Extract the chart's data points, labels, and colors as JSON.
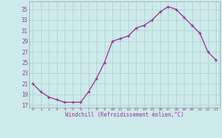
{
  "x": [
    0,
    1,
    2,
    3,
    4,
    5,
    6,
    7,
    8,
    9,
    10,
    11,
    12,
    13,
    14,
    15,
    16,
    17,
    18,
    19,
    20,
    21,
    22,
    23
  ],
  "y": [
    21,
    19.5,
    18.5,
    18,
    17.5,
    17.5,
    17.5,
    19.5,
    22,
    25,
    29,
    29.5,
    30,
    31.5,
    32,
    33,
    34.5,
    35.5,
    35,
    33.5,
    32,
    30.5,
    27,
    25.5
  ],
  "line_color": "#993399",
  "marker_color": "#993399",
  "bg_color": "#cceaea",
  "grid_color": "#aacccc",
  "text_color": "#993399",
  "xlim": [
    -0.5,
    23.5
  ],
  "ylim": [
    16.5,
    36.5
  ],
  "yticks": [
    17,
    19,
    21,
    23,
    25,
    27,
    29,
    31,
    33,
    35
  ],
  "xtick_labels": [
    "0",
    "1",
    "2",
    "3",
    "4",
    "5",
    "6",
    "7",
    "8",
    "9",
    "10",
    "11",
    "12",
    "13",
    "14",
    "15",
    "16",
    "17",
    "18",
    "19",
    "20",
    "21",
    "22",
    "23"
  ],
  "xlabel": "Windchill (Refroidissement éolien,°C)",
  "title": ""
}
